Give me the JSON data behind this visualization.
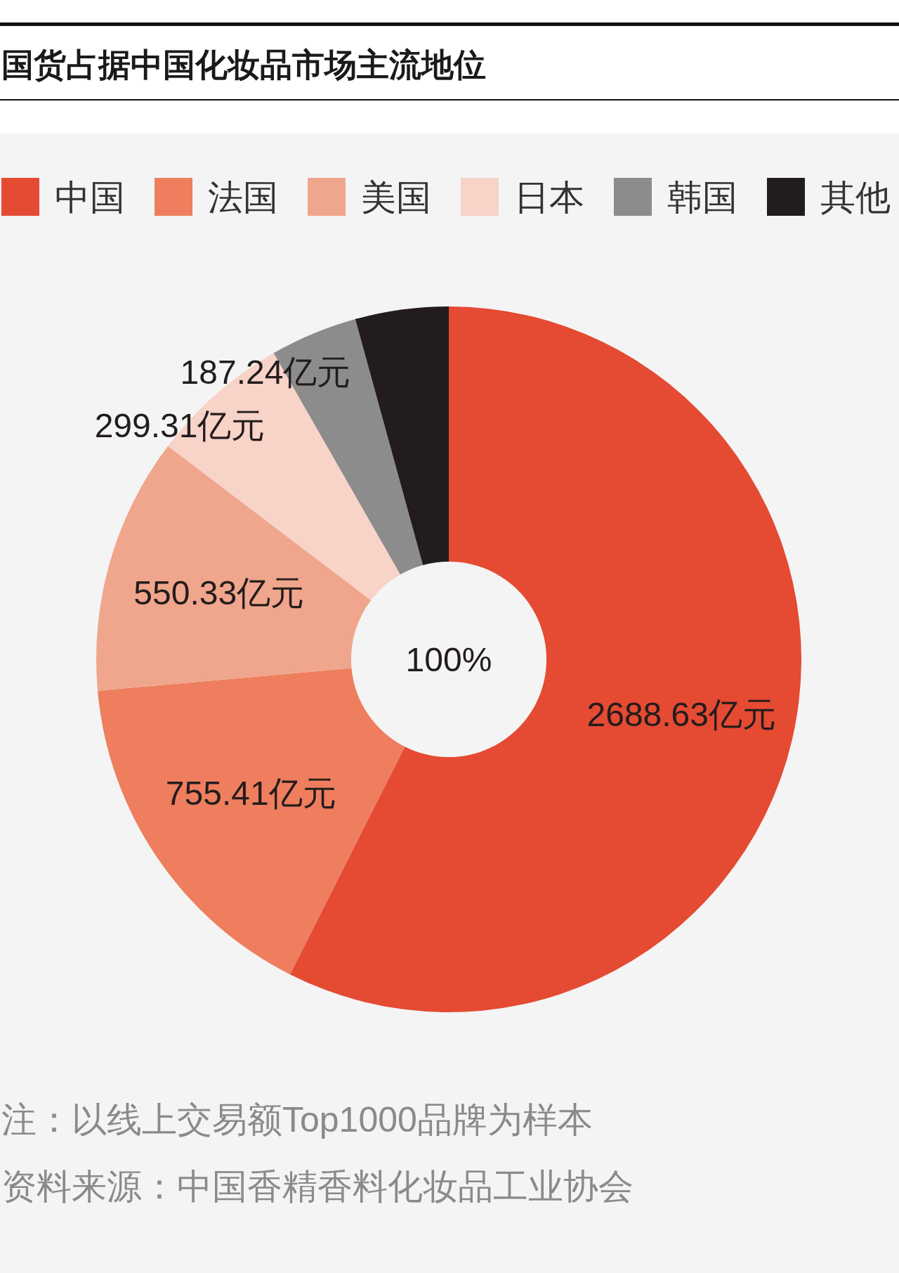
{
  "chart_data": {
    "type": "donut",
    "title": "国货占据中国化妆品市场主流地位",
    "categories": [
      "中国",
      "法国",
      "美国",
      "日本",
      "韩国",
      "其他"
    ],
    "values": [
      2688.63,
      755.41,
      550.33,
      299.31,
      187.24,
      200
    ],
    "value_labels": [
      "2688.63亿元",
      "755.41亿元",
      "550.33亿元",
      "299.31亿元",
      "187.24亿元",
      null
    ],
    "colors": [
      "#e54a33",
      "#ee7e5e",
      "#f0a68c",
      "#f8d3c8",
      "#8c8c8c",
      "#231c1c"
    ],
    "legend": "top",
    "annotations": [
      "100%",
      "注：以线上交易额Top1000品牌为样本",
      "资料来源：中国香精香料化妆品工业协会"
    ]
  }
}
